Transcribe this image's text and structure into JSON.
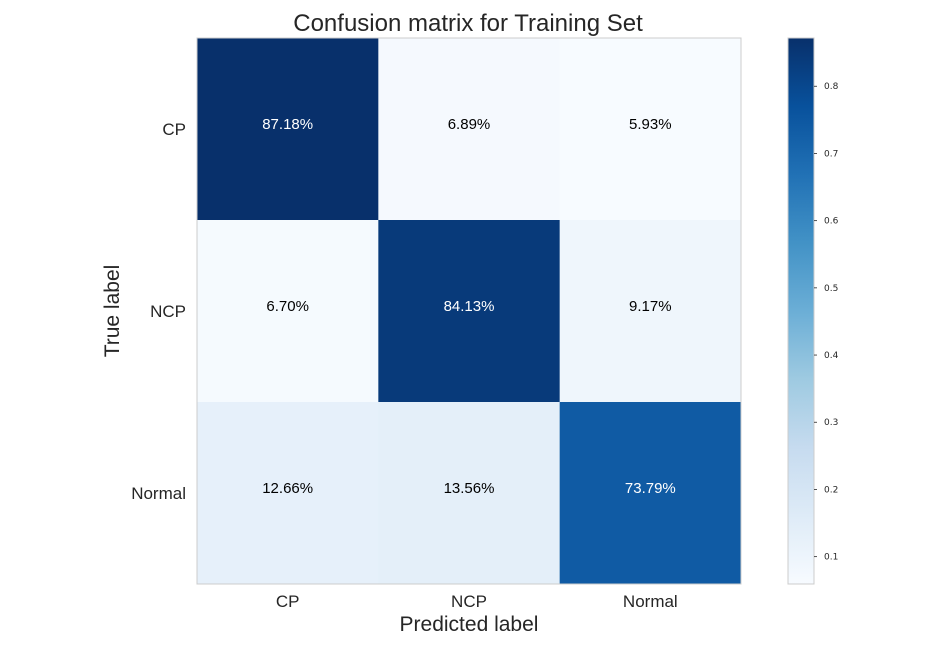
{
  "chart_data": {
    "type": "heatmap",
    "title": "Confusion matrix for Training Set",
    "xlabel": "Predicted label",
    "ylabel": "True label",
    "x_categories": [
      "CP",
      "NCP",
      "Normal"
    ],
    "y_categories": [
      "CP",
      "NCP",
      "Normal"
    ],
    "values": [
      [
        0.8718,
        0.0689,
        0.0593
      ],
      [
        0.067,
        0.8413,
        0.0917
      ],
      [
        0.1266,
        0.1356,
        0.7379
      ]
    ],
    "cell_labels": [
      [
        "87.18%",
        "6.89%",
        "5.93%"
      ],
      [
        "6.70%",
        "84.13%",
        "9.17%"
      ],
      [
        "12.66%",
        "13.56%",
        "73.79%"
      ]
    ],
    "colormap": "Blues",
    "colorbar": {
      "min": 0.0593,
      "max": 0.8718,
      "ticks": [
        0.1,
        0.2,
        0.3,
        0.4,
        0.5,
        0.6,
        0.7,
        0.8
      ],
      "tick_labels": [
        "0.1",
        "0.2",
        "0.3",
        "0.4",
        "0.5",
        "0.6",
        "0.7",
        "0.8"
      ]
    },
    "grid": false,
    "colors": {
      "text_light": "#ffffff",
      "text_dark": "#000000",
      "frame": "#cccccc"
    }
  }
}
